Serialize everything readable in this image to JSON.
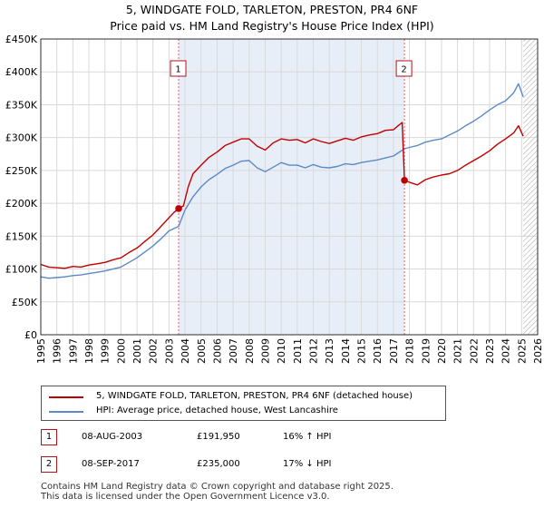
{
  "title": "5, WINDGATE FOLD, TARLETON, PRESTON, PR4 6NF",
  "subtitle": "Price paid vs. HM Land Registry's House Price Index (HPI)",
  "colors": {
    "property": "#c00000",
    "hpi": "#5b8ac6",
    "shade": "#e8eef8",
    "marker": "#c00000",
    "grid": "#d9d9d9"
  },
  "chart_data": {
    "type": "line",
    "title": "5, WINDGATE FOLD, TARLETON, PRESTON, PR4 6NF",
    "xlabel": "",
    "ylabel": "",
    "xlim": [
      1995,
      2026
    ],
    "ylim": [
      0,
      450000
    ],
    "grid": true,
    "y_ticks": [
      0,
      50000,
      100000,
      150000,
      200000,
      250000,
      300000,
      350000,
      400000,
      450000
    ],
    "y_tick_labels": [
      "£0",
      "£50K",
      "£100K",
      "£150K",
      "£200K",
      "£250K",
      "£300K",
      "£350K",
      "£400K",
      "£450K"
    ],
    "x_ticks": [
      "1995",
      "1996",
      "1997",
      "1998",
      "1999",
      "2000",
      "2001",
      "2002",
      "2003",
      "2004",
      "2005",
      "2006",
      "2007",
      "2008",
      "2009",
      "2010",
      "2011",
      "2012",
      "2013",
      "2014",
      "2015",
      "2016",
      "2017",
      "2018",
      "2019",
      "2020",
      "2021",
      "2022",
      "2023",
      "2024",
      "2025",
      "2026"
    ],
    "shaded_range": [
      2003.6,
      2017.69
    ],
    "future_hatch_from": 2025.1,
    "series": [
      {
        "name": "5, WINDGATE FOLD, TARLETON, PRESTON, PR4 6NF (detached house)",
        "color": "#c00000",
        "x": [
          1995.0,
          1995.5,
          1996.0,
          1996.5,
          1997.0,
          1997.5,
          1998.0,
          1998.5,
          1999.0,
          1999.5,
          2000.0,
          2000.5,
          2001.0,
          2001.5,
          2002.0,
          2002.5,
          2003.0,
          2003.3,
          2003.6,
          2003.9,
          2004.2,
          2004.5,
          2005.0,
          2005.5,
          2006.0,
          2006.5,
          2007.0,
          2007.5,
          2008.0,
          2008.5,
          2009.0,
          2009.5,
          2010.0,
          2010.5,
          2011.0,
          2011.5,
          2012.0,
          2012.5,
          2013.0,
          2013.5,
          2014.0,
          2014.5,
          2015.0,
          2015.5,
          2016.0,
          2016.5,
          2017.0,
          2017.3,
          2017.55,
          2017.69,
          2018.0,
          2018.5,
          2019.0,
          2019.5,
          2020.0,
          2020.5,
          2021.0,
          2021.5,
          2022.0,
          2022.5,
          2023.0,
          2023.5,
          2024.0,
          2024.5,
          2024.8,
          2025.1
        ],
        "y": [
          107000,
          103000,
          102000,
          101000,
          104000,
          103000,
          106000,
          108000,
          110000,
          114000,
          117000,
          125000,
          132000,
          142000,
          152000,
          165000,
          178000,
          186000,
          191950,
          196000,
          225000,
          245000,
          258000,
          270000,
          278000,
          288000,
          293000,
          298000,
          298000,
          287000,
          281000,
          292000,
          298000,
          296000,
          297000,
          292000,
          298000,
          294000,
          291000,
          295000,
          299000,
          296000,
          301000,
          304000,
          306000,
          311000,
          312000,
          318000,
          323000,
          235000,
          232000,
          228000,
          236000,
          240000,
          243000,
          245000,
          250000,
          258000,
          265000,
          272000,
          280000,
          290000,
          298000,
          307000,
          318000,
          302000
        ]
      },
      {
        "name": "HPI: Average price, detached house, West Lancashire",
        "color": "#5b8ac6",
        "x": [
          1995.0,
          1995.5,
          1996.0,
          1996.5,
          1997.0,
          1997.5,
          1998.0,
          1998.5,
          1999.0,
          1999.5,
          2000.0,
          2000.5,
          2001.0,
          2001.5,
          2002.0,
          2002.5,
          2003.0,
          2003.6,
          2004.0,
          2004.5,
          2005.0,
          2005.5,
          2006.0,
          2006.5,
          2007.0,
          2007.5,
          2008.0,
          2008.5,
          2009.0,
          2009.5,
          2010.0,
          2010.5,
          2011.0,
          2011.5,
          2012.0,
          2012.5,
          2013.0,
          2013.5,
          2014.0,
          2014.5,
          2015.0,
          2015.5,
          2016.0,
          2016.5,
          2017.0,
          2017.69,
          2018.0,
          2018.5,
          2019.0,
          2019.5,
          2020.0,
          2020.5,
          2021.0,
          2021.5,
          2022.0,
          2022.5,
          2023.0,
          2023.5,
          2024.0,
          2024.5,
          2024.8,
          2025.1
        ],
        "y": [
          88000,
          86000,
          87000,
          88000,
          90000,
          91000,
          93000,
          95000,
          97000,
          100000,
          103000,
          110000,
          117000,
          126000,
          135000,
          146000,
          158000,
          165000,
          190000,
          210000,
          225000,
          236000,
          244000,
          253000,
          258000,
          264000,
          265000,
          254000,
          248000,
          255000,
          262000,
          258000,
          258000,
          254000,
          259000,
          255000,
          254000,
          256000,
          260000,
          259000,
          262000,
          264000,
          266000,
          269000,
          272000,
          283000,
          285000,
          288000,
          293000,
          296000,
          298000,
          304000,
          310000,
          318000,
          325000,
          333000,
          342000,
          350000,
          356000,
          368000,
          382000,
          362000
        ]
      }
    ],
    "annotations": [
      {
        "label": "1",
        "x": 2003.6,
        "y": 191950
      },
      {
        "label": "2",
        "x": 2017.69,
        "y": 235000
      }
    ]
  },
  "legend": {
    "property_label": "5, WINDGATE FOLD, TARLETON, PRESTON, PR4 6NF (detached house)",
    "hpi_label": "HPI: Average price, detached house, West Lancashire"
  },
  "sales": [
    {
      "num": "1",
      "date": "08-AUG-2003",
      "price": "£191,950",
      "hpi": "16% ↑ HPI"
    },
    {
      "num": "2",
      "date": "08-SEP-2017",
      "price": "£235,000",
      "hpi": "17% ↓ HPI"
    }
  ],
  "footer": "Contains HM Land Registry data © Crown copyright and database right 2025.\nThis data is licensed under the Open Government Licence v3.0."
}
